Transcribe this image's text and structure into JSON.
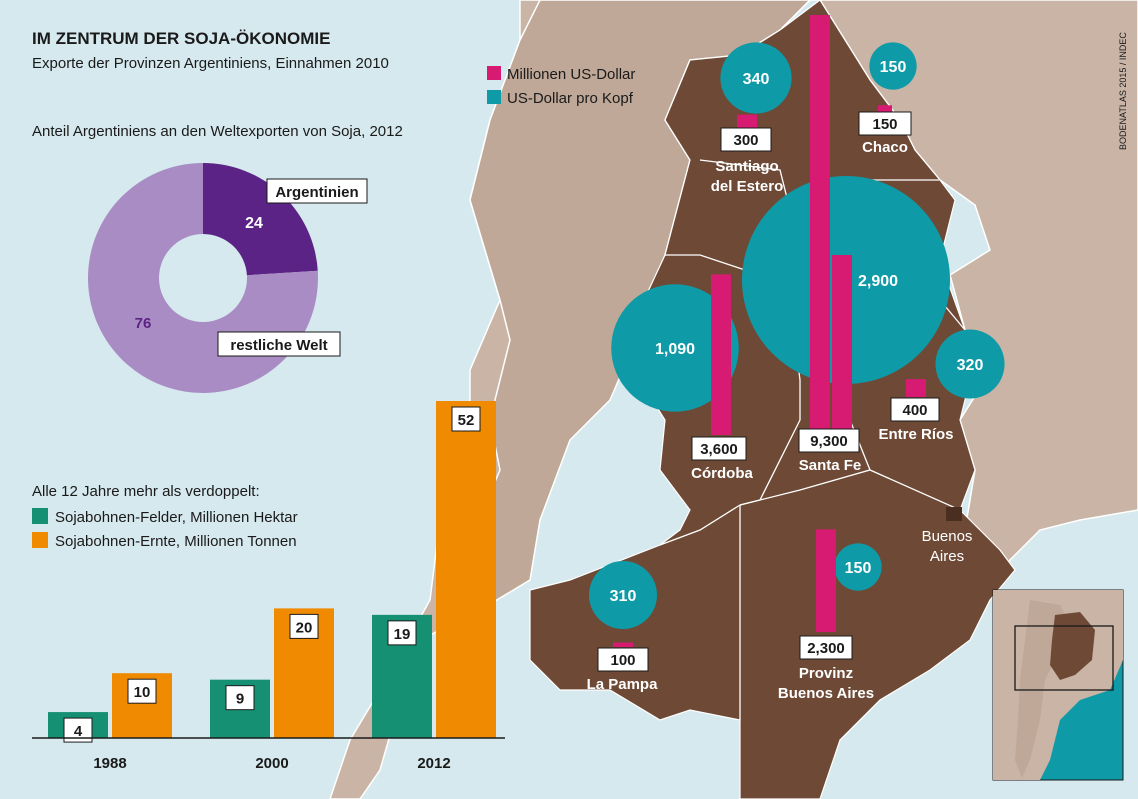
{
  "title": "IM ZENTRUM DER SOJA-ÖKONOMIE",
  "subtitle": "Exporte der Provinzen Argentiniens, Einnahmen 2010",
  "credit": "BODENATLAS 2015 / INDEC",
  "colors": {
    "export": "#d81b72",
    "per_capita": "#0e9aa7",
    "argentinien": "#5b2385",
    "rest": "#a98cc4",
    "fields": "#169073",
    "harvest": "#f08a00",
    "land": "#6e4a36",
    "neighbor": "#c9b4a6",
    "sea": "#d6e9ee"
  },
  "legend": {
    "export_label": "Millionen US-Dollar",
    "per_capita_label": "US-Dollar pro Kopf"
  },
  "donut": {
    "title": "Anteil Argentiniens an den Weltexporten von Soja, 2012",
    "arg_label": "Argentinien",
    "arg_value": "24",
    "rest_label": "restliche Welt",
    "rest_value": "76"
  },
  "bars_section": {
    "title": "Alle 12 Jahre mehr als verdoppelt:",
    "legend_fields": "Sojabohnen-Felder, Millionen Hektar",
    "legend_harvest": "Sojabohnen-Ernte, Millionen Tonnen"
  },
  "map": {
    "city_label_1": "Buenos",
    "city_label_2": "Aires"
  },
  "chart_data": [
    {
      "type": "pie",
      "title": "Anteil Argentiniens an den Weltexporten von Soja, 2012",
      "categories": [
        "Argentinien",
        "restliche Welt"
      ],
      "values": [
        24,
        76
      ]
    },
    {
      "type": "bar",
      "title": "Alle 12 Jahre mehr als verdoppelt:",
      "categories": [
        "1988",
        "2000",
        "2012"
      ],
      "series": [
        {
          "name": "Sojabohnen-Felder, Millionen Hektar",
          "values": [
            4,
            9,
            19
          ]
        },
        {
          "name": "Sojabohnen-Ernte, Millionen Tonnen",
          "values": [
            10,
            20,
            52
          ]
        }
      ]
    },
    {
      "type": "bar",
      "title": "Exporte der Provinzen Argentiniens, Einnahmen 2010",
      "categories": [
        "Santiago del Estero",
        "Chaco",
        "Córdoba",
        "Santa Fe",
        "Entre Ríos",
        "La Pampa",
        "Provinz Buenos Aires"
      ],
      "series": [
        {
          "name": "Millionen US-Dollar",
          "values": [
            300,
            150,
            3600,
            9300,
            400,
            100,
            2300
          ]
        },
        {
          "name": "US-Dollar pro Kopf",
          "values": [
            340,
            150,
            1090,
            2900,
            320,
            310,
            150
          ]
        }
      ]
    }
  ],
  "provinces": [
    {
      "name1": "Santiago",
      "name2": "del Estero",
      "export": "300",
      "per_capita": "340"
    },
    {
      "name1": "Chaco",
      "name2": "",
      "export": "150",
      "per_capita": "150"
    },
    {
      "name1": "Córdoba",
      "name2": "",
      "export": "3,600",
      "per_capita": "1,090"
    },
    {
      "name1": "Santa Fe",
      "name2": "",
      "export": "9,300",
      "per_capita": "2,900"
    },
    {
      "name1": "Entre Ríos",
      "name2": "",
      "export": "400",
      "per_capita": "320"
    },
    {
      "name1": "La Pampa",
      "name2": "",
      "export": "100",
      "per_capita": "310"
    },
    {
      "name1": "Provinz",
      "name2": "Buenos Aires",
      "export": "2,300",
      "per_capita": "150"
    }
  ]
}
